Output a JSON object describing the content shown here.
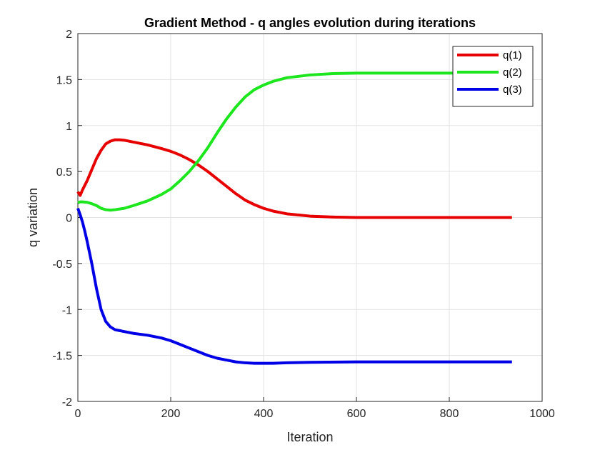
{
  "chart_data": {
    "type": "line",
    "title": "Gradient Method - q angles evolution during iterations",
    "xlabel": "Iteration",
    "ylabel": "q variation",
    "xlim": [
      0,
      1000
    ],
    "ylim": [
      -2,
      2
    ],
    "xticks": [
      0,
      200,
      400,
      600,
      800,
      1000
    ],
    "yticks": [
      -2,
      -1.5,
      -1,
      -0.5,
      0,
      0.5,
      1,
      1.5,
      2
    ],
    "xtick_labels": [
      "0",
      "200",
      "400",
      "600",
      "800",
      "1000"
    ],
    "ytick_labels": [
      "-2",
      "-1.5",
      "-1",
      "-0.5",
      "0",
      "0.5",
      "1",
      "1.5",
      "2"
    ],
    "grid": true,
    "legend_position": "top-right",
    "series": [
      {
        "name": "q(1)",
        "color": "#e60000",
        "x": [
          0,
          5,
          10,
          20,
          30,
          40,
          50,
          60,
          70,
          80,
          90,
          100,
          120,
          150,
          180,
          200,
          220,
          240,
          260,
          280,
          300,
          320,
          340,
          360,
          380,
          400,
          420,
          450,
          500,
          550,
          600,
          650,
          700,
          800,
          935
        ],
        "y": [
          0.28,
          0.24,
          0.3,
          0.4,
          0.52,
          0.64,
          0.73,
          0.8,
          0.83,
          0.845,
          0.845,
          0.84,
          0.82,
          0.79,
          0.75,
          0.72,
          0.68,
          0.63,
          0.57,
          0.5,
          0.42,
          0.34,
          0.26,
          0.19,
          0.14,
          0.1,
          0.07,
          0.04,
          0.015,
          0.005,
          0.0,
          0.0,
          0.0,
          0.0,
          0.0
        ]
      },
      {
        "name": "q(2)",
        "color": "#1ee61e",
        "x": [
          0,
          5,
          10,
          20,
          30,
          40,
          50,
          60,
          70,
          80,
          100,
          120,
          150,
          180,
          200,
          220,
          240,
          260,
          280,
          300,
          320,
          340,
          360,
          380,
          400,
          420,
          450,
          500,
          550,
          600,
          650,
          700,
          800,
          935
        ],
        "y": [
          0.16,
          0.17,
          0.17,
          0.165,
          0.15,
          0.13,
          0.1,
          0.085,
          0.08,
          0.085,
          0.1,
          0.13,
          0.18,
          0.25,
          0.31,
          0.4,
          0.5,
          0.62,
          0.76,
          0.92,
          1.07,
          1.2,
          1.31,
          1.39,
          1.44,
          1.48,
          1.52,
          1.55,
          1.565,
          1.57,
          1.57,
          1.57,
          1.57,
          1.57
        ]
      },
      {
        "name": "q(3)",
        "color": "#0000e6",
        "x": [
          0,
          5,
          10,
          15,
          20,
          30,
          40,
          50,
          60,
          70,
          80,
          90,
          100,
          120,
          150,
          180,
          200,
          220,
          240,
          260,
          280,
          300,
          320,
          340,
          360,
          380,
          400,
          420,
          450,
          500,
          600,
          700,
          800,
          935
        ],
        "y": [
          0.1,
          0.03,
          -0.05,
          -0.15,
          -0.26,
          -0.5,
          -0.77,
          -1.0,
          -1.13,
          -1.19,
          -1.22,
          -1.23,
          -1.24,
          -1.26,
          -1.28,
          -1.31,
          -1.34,
          -1.38,
          -1.42,
          -1.46,
          -1.5,
          -1.53,
          -1.55,
          -1.57,
          -1.58,
          -1.585,
          -1.585,
          -1.585,
          -1.58,
          -1.575,
          -1.57,
          -1.57,
          -1.57,
          -1.57
        ]
      }
    ]
  }
}
